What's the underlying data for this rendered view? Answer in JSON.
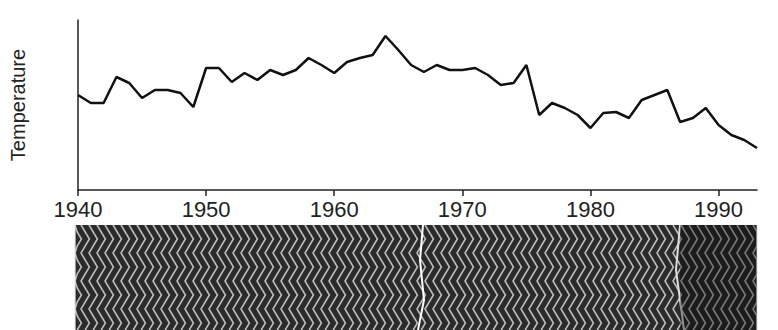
{
  "chart_data": {
    "type": "line",
    "y_label": "Temperature",
    "x": [
      1940,
      1941,
      1942,
      1943,
      1944,
      1945,
      1946,
      1947,
      1948,
      1949,
      1950,
      1951,
      1952,
      1953,
      1954,
      1955,
      1956,
      1957,
      1958,
      1959,
      1960,
      1961,
      1962,
      1963,
      1964,
      1965,
      1966,
      1967,
      1968,
      1969,
      1970,
      1971,
      1972,
      1973,
      1974,
      1975,
      1976,
      1977,
      1978,
      1979,
      1980,
      1981,
      1982,
      1983,
      1984,
      1985,
      1986,
      1987,
      1988,
      1989,
      1990,
      1991,
      1992,
      1993
    ],
    "values": [
      9.5,
      8.7,
      8.7,
      11.3,
      10.7,
      9.2,
      10,
      10,
      9.7,
      8.3,
      12.2,
      12.2,
      10.8,
      11.7,
      11,
      12,
      11.5,
      12,
      13.2,
      12.5,
      11.7,
      12.8,
      13.2,
      13.5,
      15.4,
      14,
      12.5,
      11.8,
      12.5,
      12,
      12,
      12.2,
      11.5,
      10.5,
      10.7,
      12.5,
      7.5,
      8.7,
      8.2,
      7.5,
      6.2,
      7.7,
      7.8,
      7.2,
      9,
      9.5,
      10,
      6.8,
      7.2,
      8.2,
      6.5,
      5.5,
      5,
      4.2
    ],
    "color": "#111111",
    "xlim": [
      1940,
      1993
    ],
    "xticks": [
      1940,
      1950,
      1960,
      1970,
      1980,
      1990
    ],
    "ylim": [
      0,
      17
    ],
    "grid": false,
    "tick_labels": "x"
  }
}
